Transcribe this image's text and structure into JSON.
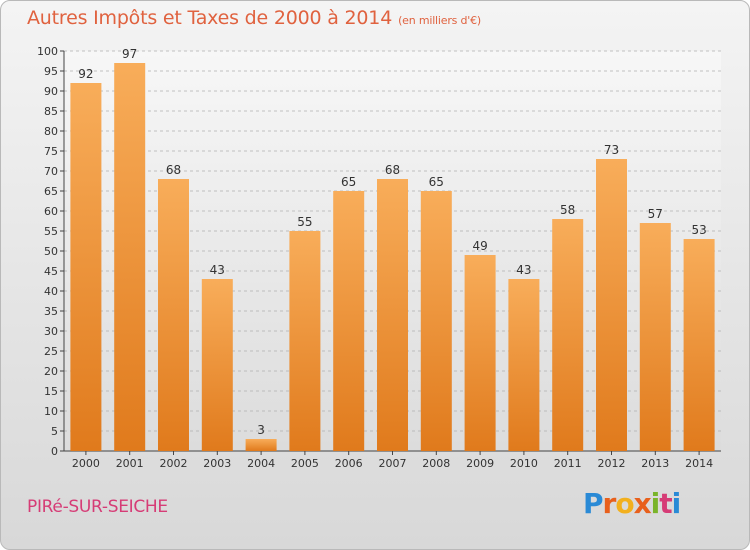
{
  "title": "Autres Impôts et Taxes de 2000 à 2014",
  "title_unit": "(en milliers d'€)",
  "town": "PIRé-SUR-SEICHE",
  "logo": {
    "letters": [
      "P",
      "r",
      "o",
      "x",
      "i",
      "t",
      "i"
    ],
    "colors": [
      "#2a8ad6",
      "#e8601c",
      "#f2b01e",
      "#e8601c",
      "#7ab42a",
      "#d63c76",
      "#2a8ad6"
    ]
  },
  "colors": {
    "bar": "#f08c2a",
    "bar_light": "#f6aa55",
    "title": "#e0623f",
    "town": "#d63c76"
  },
  "chart_data": {
    "type": "bar",
    "categories": [
      "2000",
      "2001",
      "2002",
      "2003",
      "2004",
      "2005",
      "2006",
      "2007",
      "2008",
      "2009",
      "2010",
      "2011",
      "2012",
      "2013",
      "2014"
    ],
    "values": [
      92,
      97,
      68,
      43,
      3,
      55,
      65,
      68,
      65,
      49,
      43,
      58,
      73,
      57,
      53
    ],
    "ylim": [
      0,
      100
    ],
    "ytick_step": 5,
    "grid": true,
    "legend": "none"
  }
}
